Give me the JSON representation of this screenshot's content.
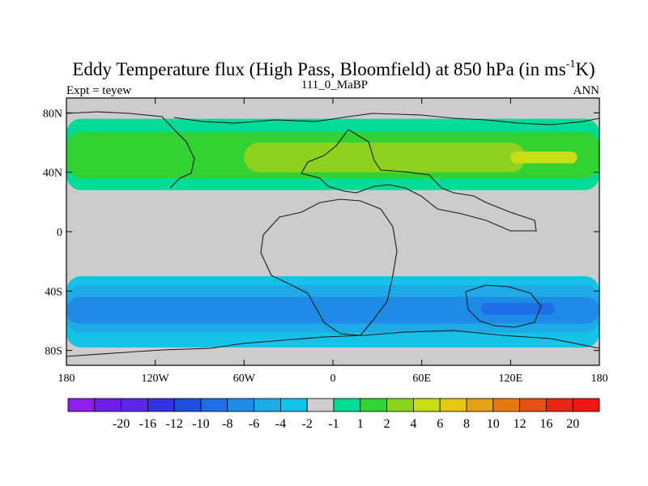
{
  "chart_data": {
    "type": "heatmap",
    "title_main": "Eddy Temperature flux (High Pass, Bloomfield) at 850 hPa (in ms",
    "title_sup": "-1",
    "title_end": "K)",
    "left_label": "Expt = teyew",
    "center_label": "111_0_MaBP",
    "right_label": "ANN",
    "x_ticks": [
      {
        "value": -180,
        "label": "180"
      },
      {
        "value": -120,
        "label": "120W"
      },
      {
        "value": -60,
        "label": "60W"
      },
      {
        "value": 0,
        "label": "0"
      },
      {
        "value": 60,
        "label": "60E"
      },
      {
        "value": 120,
        "label": "120E"
      },
      {
        "value": 180,
        "label": "180"
      }
    ],
    "y_ticks": [
      {
        "value": 80,
        "label": "80N"
      },
      {
        "value": 40,
        "label": "40N"
      },
      {
        "value": 0,
        "label": "0"
      },
      {
        "value": -40,
        "label": "40S"
      },
      {
        "value": -80,
        "label": "80S"
      }
    ],
    "xlim": [
      -180,
      180
    ],
    "ylim": [
      -90,
      90
    ],
    "colorbar": {
      "colors": [
        "#8c1ee8",
        "#6e1ee6",
        "#5a28e6",
        "#3232e0",
        "#1e50dc",
        "#1e6ee6",
        "#1e8ce6",
        "#1eaae6",
        "#14c3e6",
        "#cccccc",
        "#00dc96",
        "#32d232",
        "#8cd21e",
        "#c8dc14",
        "#e6c814",
        "#e6a014",
        "#e67814",
        "#e65014",
        "#e62814",
        "#f01414"
      ],
      "labels": [
        "-20",
        "-16",
        "-12",
        "-10",
        "-8",
        "-6",
        "-4",
        "-2",
        "-1",
        "1",
        "2",
        "4",
        "6",
        "8",
        "10",
        "12",
        "16",
        "20"
      ]
    },
    "regions": [
      {
        "level": 2,
        "color": "#00dc96",
        "lon": [
          -180,
          180
        ],
        "lat": [
          28,
          76
        ]
      },
      {
        "level": 4,
        "color": "#32d232",
        "lon": [
          -180,
          180
        ],
        "lat": [
          36,
          67
        ]
      },
      {
        "level": 6,
        "color": "#8cd21e",
        "lon": [
          -60,
          130
        ],
        "lat": [
          40,
          60
        ]
      },
      {
        "level": 8,
        "color": "#c8dc14",
        "lon": [
          120,
          165
        ],
        "lat": [
          46,
          54
        ]
      },
      {
        "level": -1,
        "color": "#14c3e6",
        "lon": [
          -180,
          180
        ],
        "lat": [
          -78,
          -30
        ]
      },
      {
        "level": -2,
        "color": "#1eaae6",
        "lon": [
          -180,
          180
        ],
        "lat": [
          -68,
          -36
        ]
      },
      {
        "level": -4,
        "color": "#1e8ce6",
        "lon": [
          -180,
          180
        ],
        "lat": [
          -62,
          -44
        ]
      },
      {
        "level": -6,
        "color": "#1e6ee6",
        "lon": [
          100,
          150
        ],
        "lat": [
          -56,
          -48
        ]
      }
    ]
  }
}
